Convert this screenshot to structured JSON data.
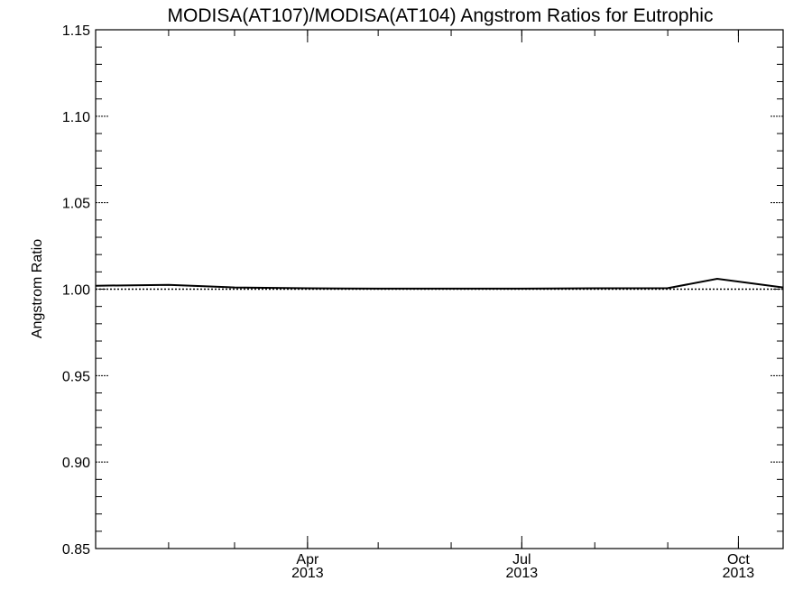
{
  "chart_data": {
    "type": "line",
    "title": "MODISA(AT107)/MODISA(AT104)   Angstrom Ratios for Eutrophic",
    "xlabel": "",
    "ylabel": "Angstrom Ratio",
    "ylim": [
      0.85,
      1.15
    ],
    "xlim": [
      "2013-01-01",
      "2013-10-20"
    ],
    "yticks": [
      "0.85",
      "0.90",
      "0.95",
      "1.00",
      "1.05",
      "1.10",
      "1.15"
    ],
    "xticks": [
      {
        "month": "Apr",
        "year": "2013",
        "date": "2013-04-01"
      },
      {
        "month": "Jul",
        "year": "2013",
        "date": "2013-07-01"
      },
      {
        "month": "Oct",
        "year": "2013",
        "date": "2013-10-01"
      }
    ],
    "reference_line": {
      "y": 1.0,
      "style": "dotted"
    },
    "series": [
      {
        "x": [
          "2013-01-01",
          "2013-02-01",
          "2013-03-01",
          "2013-04-01",
          "2013-05-01",
          "2013-06-01",
          "2013-07-01",
          "2013-08-01",
          "2013-09-01",
          "2013-09-22",
          "2013-10-20"
        ],
        "values": [
          1.002,
          1.0025,
          1.001,
          1.0005,
          1.0003,
          1.0003,
          1.0003,
          1.0005,
          1.0006,
          1.006,
          1.001
        ]
      }
    ],
    "grid": false
  }
}
